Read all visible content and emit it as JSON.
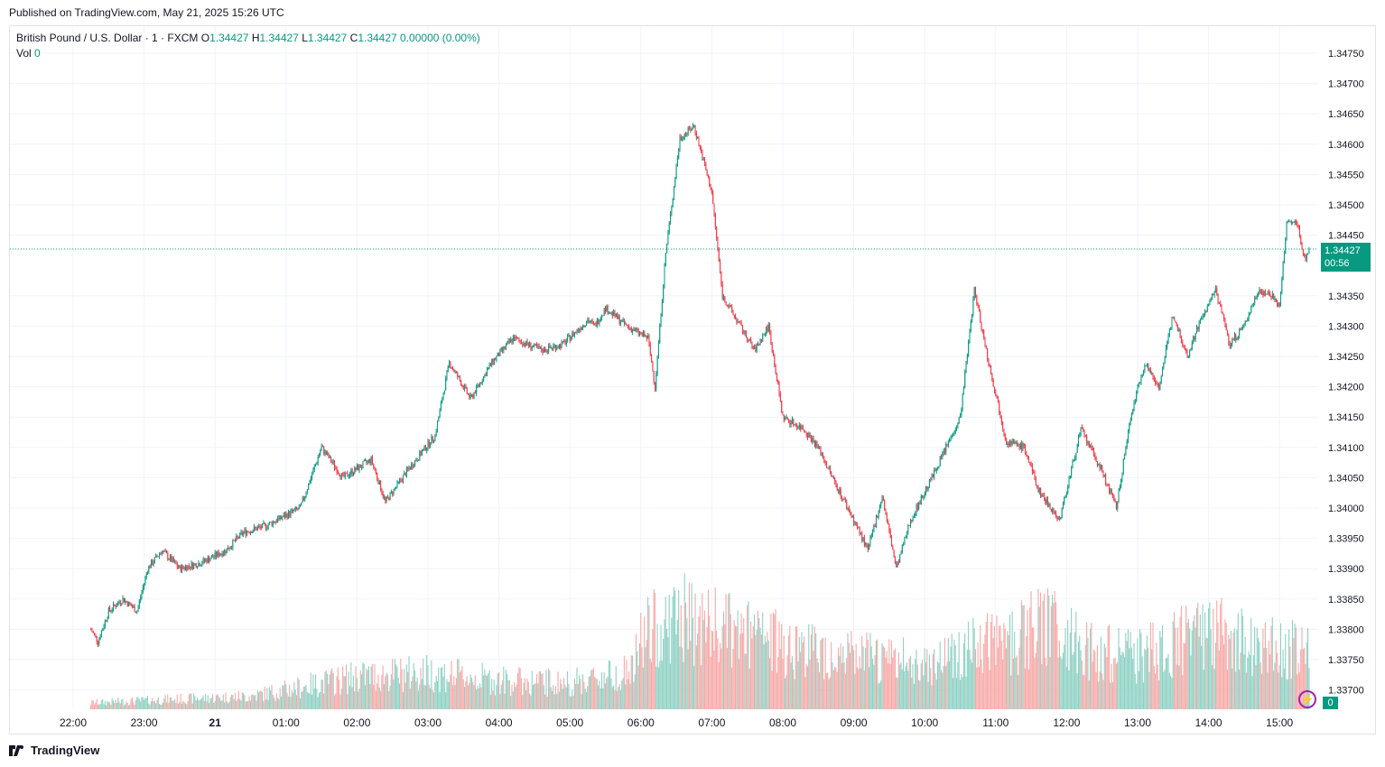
{
  "published": "Published on TradingView.com, May 21, 2025 15:26 UTC",
  "legend": {
    "symbol": "British Pound / U.S. Dollar · 1 · FXCM",
    "o_label": "O",
    "o": "1.34427",
    "h_label": "H",
    "h": "1.34427",
    "l_label": "L",
    "l": "1.34427",
    "c_label": "C",
    "c": "1.34427",
    "change": "0.00000 (0.00%)",
    "vol_label": "Vol",
    "vol": "0"
  },
  "last_price": {
    "price": "1.34427",
    "countdown": "00:56"
  },
  "volume_tag": "0",
  "footer": {
    "brand": "TradingView"
  },
  "colors": {
    "up": "#089981",
    "down": "#f23645",
    "up_vol": "#8fd1c4",
    "down_vol": "#f7a9a7",
    "grid": "#f0f3fa",
    "accent": "#089981"
  },
  "chart_data": {
    "type": "candlestick",
    "title": "British Pound / U.S. Dollar · 1 · FXCM",
    "ylim": [
      1.3367,
      1.3477
    ],
    "y_ticks": [
      "1.34750",
      "1.34700",
      "1.34650",
      "1.34600",
      "1.34550",
      "1.34500",
      "1.34450",
      "1.34350",
      "1.34300",
      "1.34250",
      "1.34200",
      "1.34150",
      "1.34100",
      "1.34050",
      "1.34000",
      "1.33950",
      "1.33900",
      "1.33850",
      "1.33800",
      "1.33750",
      "1.33700"
    ],
    "x_ticks": [
      "22:00",
      "23:00",
      "21",
      "01:00",
      "02:00",
      "03:00",
      "04:00",
      "05:00",
      "06:00",
      "07:00",
      "08:00",
      "09:00",
      "10:00",
      "11:00",
      "12:00",
      "13:00",
      "14:00",
      "15:00"
    ],
    "x_range_hours": [
      -1.75,
      15.43
    ],
    "last_close": 1.34427,
    "path": [
      [
        -1.75,
        1.338
      ],
      [
        -1.65,
        1.3378
      ],
      [
        -1.5,
        1.3383
      ],
      [
        -1.3,
        1.3385
      ],
      [
        -1.1,
        1.3383
      ],
      [
        -0.95,
        1.339
      ],
      [
        -0.75,
        1.3393
      ],
      [
        -0.5,
        1.339
      ],
      [
        -0.2,
        1.3391
      ],
      [
        0.15,
        1.3393
      ],
      [
        0.4,
        1.3396
      ],
      [
        0.7,
        1.3397
      ],
      [
        1.2,
        1.34
      ],
      [
        1.5,
        1.341
      ],
      [
        1.8,
        1.3405
      ],
      [
        2.2,
        1.3408
      ],
      [
        2.4,
        1.3401
      ],
      [
        2.7,
        1.3406
      ],
      [
        3.1,
        1.3412
      ],
      [
        3.3,
        1.3424
      ],
      [
        3.6,
        1.3418
      ],
      [
        3.9,
        1.3424
      ],
      [
        4.2,
        1.3428
      ],
      [
        4.6,
        1.3426
      ],
      [
        4.9,
        1.3427
      ],
      [
        5.25,
        1.3431
      ],
      [
        5.35,
        1.343
      ],
      [
        5.5,
        1.3433
      ],
      [
        5.8,
        1.343
      ],
      [
        6.1,
        1.3428
      ],
      [
        6.2,
        1.342
      ],
      [
        6.35,
        1.3442
      ],
      [
        6.55,
        1.3461
      ],
      [
        6.75,
        1.3463
      ],
      [
        7.0,
        1.3452
      ],
      [
        7.15,
        1.3435
      ],
      [
        7.3,
        1.3432
      ],
      [
        7.6,
        1.3426
      ],
      [
        7.8,
        1.343
      ],
      [
        8.0,
        1.3415
      ],
      [
        8.3,
        1.3413
      ],
      [
        8.5,
        1.341
      ],
      [
        8.7,
        1.3405
      ],
      [
        9.0,
        1.3398
      ],
      [
        9.2,
        1.3393
      ],
      [
        9.4,
        1.3402
      ],
      [
        9.6,
        1.339
      ],
      [
        9.8,
        1.3398
      ],
      [
        10.1,
        1.3405
      ],
      [
        10.3,
        1.341
      ],
      [
        10.5,
        1.3415
      ],
      [
        10.7,
        1.3436
      ],
      [
        10.9,
        1.3424
      ],
      [
        11.15,
        1.3411
      ],
      [
        11.4,
        1.341
      ],
      [
        11.6,
        1.3403
      ],
      [
        11.9,
        1.3398
      ],
      [
        12.2,
        1.3413
      ],
      [
        12.5,
        1.3406
      ],
      [
        12.7,
        1.34
      ],
      [
        12.9,
        1.3415
      ],
      [
        13.1,
        1.3424
      ],
      [
        13.3,
        1.342
      ],
      [
        13.5,
        1.3432
      ],
      [
        13.7,
        1.3425
      ],
      [
        13.85,
        1.343
      ],
      [
        14.1,
        1.3436
      ],
      [
        14.3,
        1.3427
      ],
      [
        14.5,
        1.343
      ],
      [
        14.7,
        1.3436
      ],
      [
        14.9,
        1.3435
      ],
      [
        15.0,
        1.3433
      ],
      [
        15.1,
        1.3447
      ],
      [
        15.25,
        1.3447
      ],
      [
        15.35,
        1.3441
      ],
      [
        15.43,
        1.34427
      ]
    ],
    "volume_profile": [
      [
        -1.75,
        0.05
      ],
      [
        0.5,
        0.1
      ],
      [
        2.0,
        0.25
      ],
      [
        3.0,
        0.28
      ],
      [
        4.0,
        0.22
      ],
      [
        5.0,
        0.2
      ],
      [
        5.9,
        0.3
      ],
      [
        6.0,
        0.55
      ],
      [
        6.5,
        0.7
      ],
      [
        7.2,
        0.6
      ],
      [
        8.0,
        0.5
      ],
      [
        9.0,
        0.4
      ],
      [
        10.0,
        0.35
      ],
      [
        10.5,
        0.45
      ],
      [
        11.0,
        0.5
      ],
      [
        11.8,
        0.65
      ],
      [
        12.3,
        0.45
      ],
      [
        13.0,
        0.4
      ],
      [
        13.5,
        0.5
      ],
      [
        14.0,
        0.6
      ],
      [
        14.5,
        0.5
      ],
      [
        15.43,
        0.45
      ]
    ]
  }
}
